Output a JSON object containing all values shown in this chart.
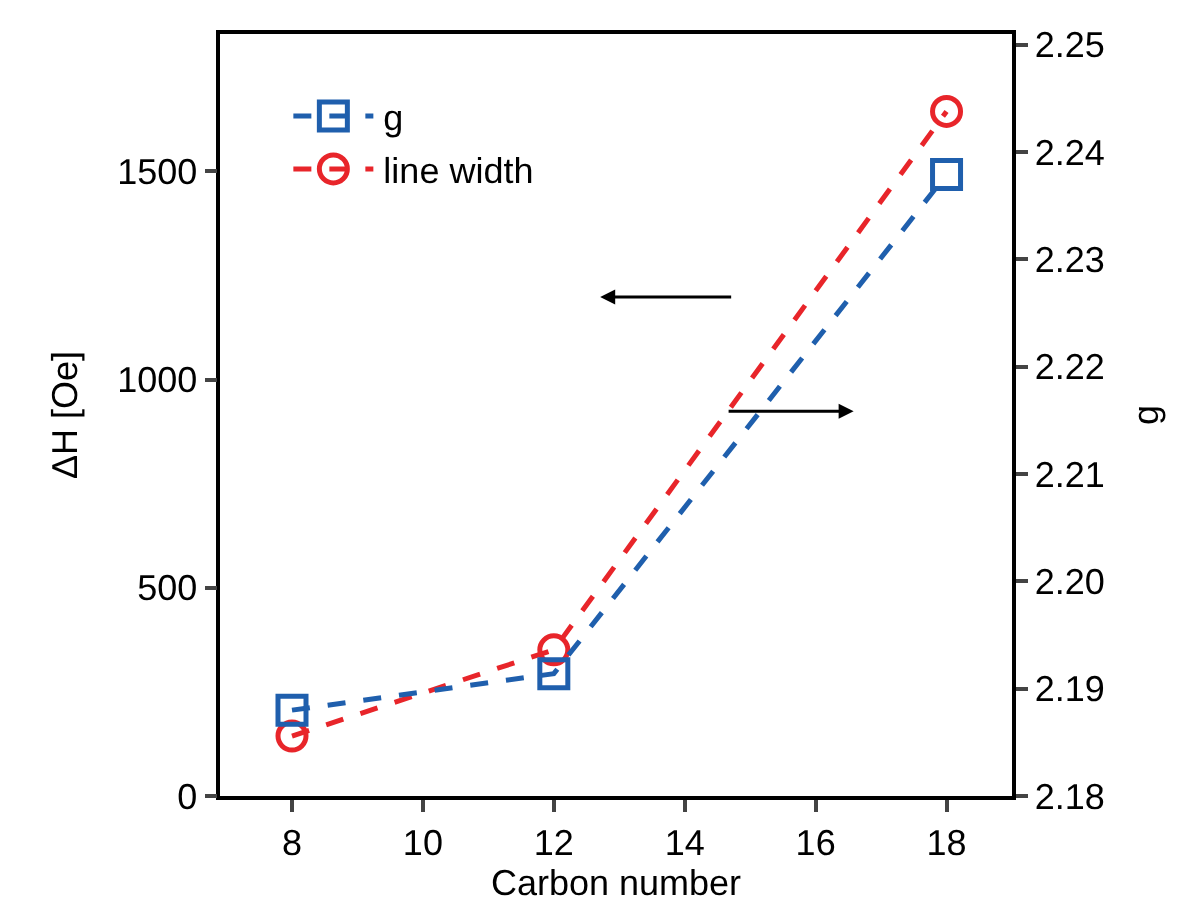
{
  "chart_data": {
    "type": "line",
    "xlabel": "Carbon number",
    "ylabel": "ΔH [Oe]",
    "y2label": "g",
    "x": [
      8,
      12,
      18
    ],
    "series": [
      {
        "name": "g",
        "color": "#1f5fad",
        "values": [
          2.188,
          2.1914,
          2.2379
        ],
        "axis": "y2",
        "marker": "square"
      },
      {
        "name": "line width",
        "color": "#e8252a",
        "values": [
          144,
          351,
          1644
        ],
        "marker": "circle"
      }
    ],
    "xlim": [
      6.9,
      19
    ],
    "xticks": [
      8,
      10,
      12,
      14,
      16,
      18
    ],
    "ylim": [
      0,
      1830
    ],
    "yticks": [
      0,
      500,
      1000,
      1500
    ],
    "y2lim": [
      2.18,
      2.251
    ],
    "y2ticks": [
      2.18,
      2.19,
      {
        "value": 2.2,
        "label": "2.20"
      },
      2.21,
      2.22,
      2.23,
      2.24,
      2.25
    ],
    "line_style": "dashed",
    "legend": "top left"
  }
}
